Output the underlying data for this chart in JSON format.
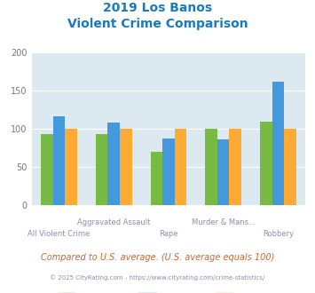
{
  "title_line1": "2019 Los Banos",
  "title_line2": "Violent Crime Comparison",
  "categories_line1": [
    "All Violent Crime",
    "Aggravated Assault",
    "Rape",
    "Murder & Mans...",
    "Robbery"
  ],
  "categories_line2": [
    "",
    "",
    "",
    "",
    ""
  ],
  "xtick_labels": [
    "All Violent Crime",
    "Aggravated Assault",
    "Rape",
    "Murder & Mans...",
    "Robbery"
  ],
  "series": {
    "Los Banos": [
      93,
      93,
      70,
      100,
      110
    ],
    "California": [
      117,
      108,
      87,
      86,
      162
    ],
    "National": [
      100,
      100,
      100,
      100,
      100
    ]
  },
  "colors": {
    "Los Banos": "#77bb44",
    "California": "#4499dd",
    "National": "#ffaa33"
  },
  "ylim": [
    0,
    200
  ],
  "yticks": [
    0,
    50,
    100,
    150,
    200
  ],
  "plot_bg": "#dce9f0",
  "title_color": "#1a7abf",
  "xtick_color": "#9988aa",
  "ytick_color": "#777777",
  "footer_text": "Compared to U.S. average. (U.S. average equals 100)",
  "footer_color": "#cc6633",
  "copyright_text": "© 2025 CityRating.com - https://www.cityrating.com/crime-statistics/",
  "copyright_color": "#9988aa"
}
